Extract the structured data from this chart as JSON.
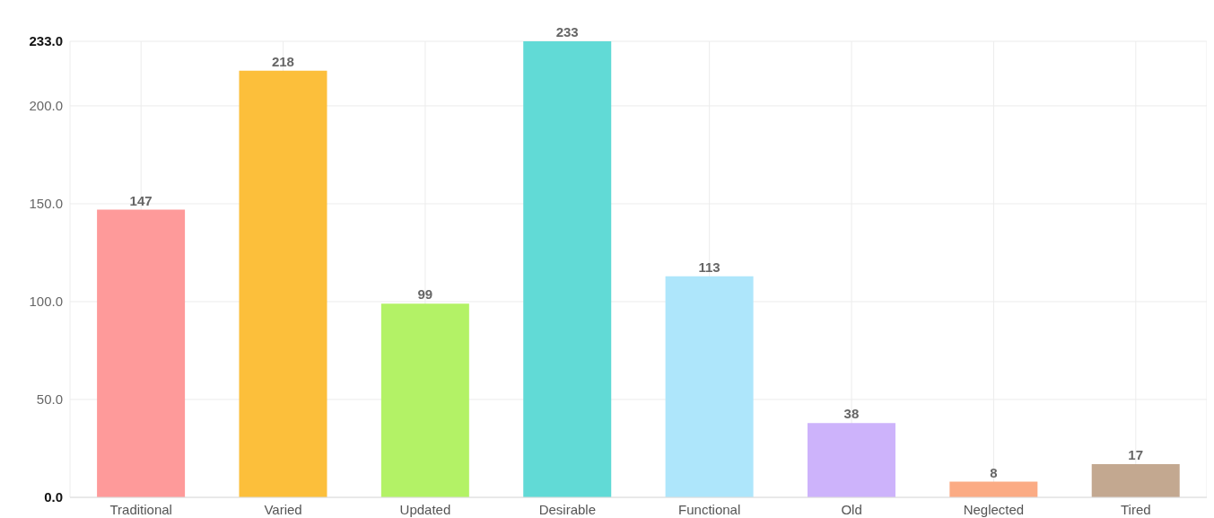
{
  "chart_data": {
    "type": "bar",
    "categories": [
      "Traditional",
      "Varied",
      "Updated",
      "Desirable",
      "Functional",
      "Old",
      "Neglected",
      "Tired"
    ],
    "values": [
      147,
      218,
      99,
      233,
      113,
      38,
      8,
      17
    ],
    "colors": [
      "#fe9a9a",
      "#fcbf3b",
      "#b3f266",
      "#61dad6",
      "#aee6fb",
      "#cdb3fb",
      "#fbab84",
      "#c3a890"
    ],
    "ylim": [
      0,
      233
    ],
    "yticks": [
      {
        "value": 0,
        "label": "0.0"
      },
      {
        "value": 50,
        "label": "50.0"
      },
      {
        "value": 100,
        "label": "100.0"
      },
      {
        "value": 150,
        "label": "150.0"
      },
      {
        "value": 200,
        "label": "200.0"
      },
      {
        "value": 233,
        "label": "233.0"
      }
    ],
    "grid": true,
    "data_labels": true
  }
}
